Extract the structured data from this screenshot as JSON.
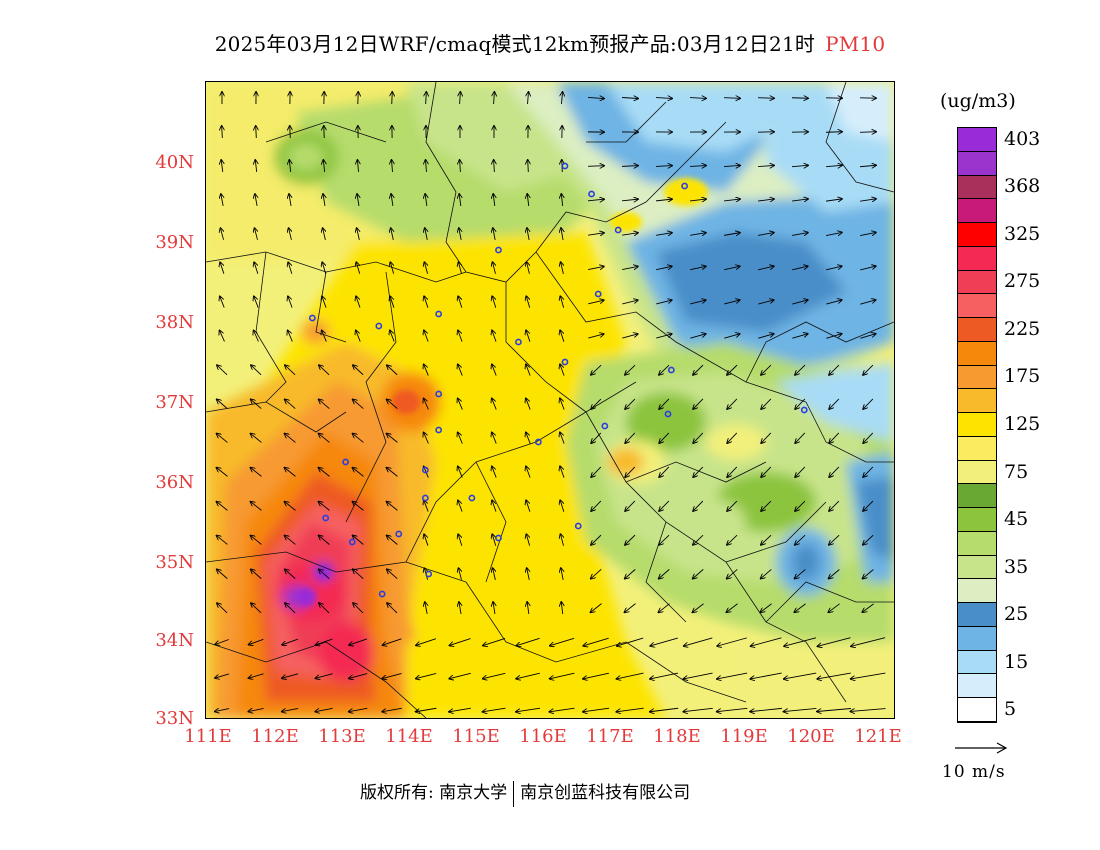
{
  "header": {
    "title": "2025年03月12日WRF/cmaq模式12km预报产品:03月12日21时",
    "pollutant": "PM10"
  },
  "map": {
    "lat_labels": [
      "40N",
      "39N",
      "38N",
      "37N",
      "36N",
      "35N",
      "34N",
      "33N"
    ],
    "lon_labels": [
      "111E",
      "112E",
      "113E",
      "114E",
      "115E",
      "116E",
      "117E",
      "118E",
      "119E",
      "120E",
      "121E"
    ],
    "lat_range": [
      33,
      40.95
    ],
    "lon_range": [
      111,
      121.35
    ],
    "accent_color": "#e23a3a"
  },
  "colorbar": {
    "unit": "(ug/m3)",
    "levels": [
      {
        "color": "#9a2bd8",
        "label": "403"
      },
      {
        "color": "#9b34cc",
        "label": ""
      },
      {
        "color": "#a8305a",
        "label": "368"
      },
      {
        "color": "#c81a78",
        "label": ""
      },
      {
        "color": "#ff0000",
        "label": "325"
      },
      {
        "color": "#f42a52",
        "label": ""
      },
      {
        "color": "#f03e56",
        "label": "275"
      },
      {
        "color": "#f66060",
        "label": ""
      },
      {
        "color": "#ee5a24",
        "label": "225"
      },
      {
        "color": "#f6880c",
        "label": ""
      },
      {
        "color": "#f79a30",
        "label": "175"
      },
      {
        "color": "#f8ba2a",
        "label": ""
      },
      {
        "color": "#fce400",
        "label": "125"
      },
      {
        "color": "#fbeb60",
        "label": ""
      },
      {
        "color": "#f2f07a",
        "label": "75"
      },
      {
        "color": "#6aa834",
        "label": ""
      },
      {
        "color": "#8cc43c",
        "label": "45"
      },
      {
        "color": "#b6dc6c",
        "label": ""
      },
      {
        "color": "#c8e48a",
        "label": "35"
      },
      {
        "color": "#dceec2",
        "label": ""
      },
      {
        "color": "#4a8ec8",
        "label": "25"
      },
      {
        "color": "#6eb4e4",
        "label": ""
      },
      {
        "color": "#a8dcf6",
        "label": "15"
      },
      {
        "color": "#d6eefc",
        "label": ""
      },
      {
        "color": "#ffffff",
        "label": "5"
      }
    ]
  },
  "wind_reference": {
    "label": "10 m/s"
  },
  "footer": {
    "copyright": "版权所有: 南京大学",
    "company": "南京创蓝科技有限公司"
  },
  "city_markers": [
    [
      112.6,
      38.0
    ],
    [
      113.6,
      37.9
    ],
    [
      114.5,
      38.05
    ],
    [
      115.4,
      38.85
    ],
    [
      115.7,
      37.7
    ],
    [
      116.4,
      37.45
    ],
    [
      116.9,
      38.3
    ],
    [
      117.2,
      39.1
    ],
    [
      116.4,
      39.9
    ],
    [
      116.8,
      39.55
    ],
    [
      118.2,
      39.65
    ],
    [
      117.0,
      36.65
    ],
    [
      117.95,
      36.8
    ],
    [
      118.0,
      37.35
    ],
    [
      114.5,
      37.05
    ],
    [
      114.5,
      36.6
    ],
    [
      114.3,
      36.1
    ],
    [
      113.1,
      36.2
    ],
    [
      115.0,
      35.75
    ],
    [
      114.3,
      35.75
    ],
    [
      116.0,
      36.45
    ],
    [
      112.8,
      35.5
    ],
    [
      113.2,
      35.2
    ],
    [
      113.9,
      35.3
    ],
    [
      115.4,
      35.25
    ],
    [
      116.6,
      35.4
    ],
    [
      113.65,
      34.55
    ],
    [
      114.35,
      34.8
    ],
    [
      120.0,
      36.85
    ]
  ]
}
